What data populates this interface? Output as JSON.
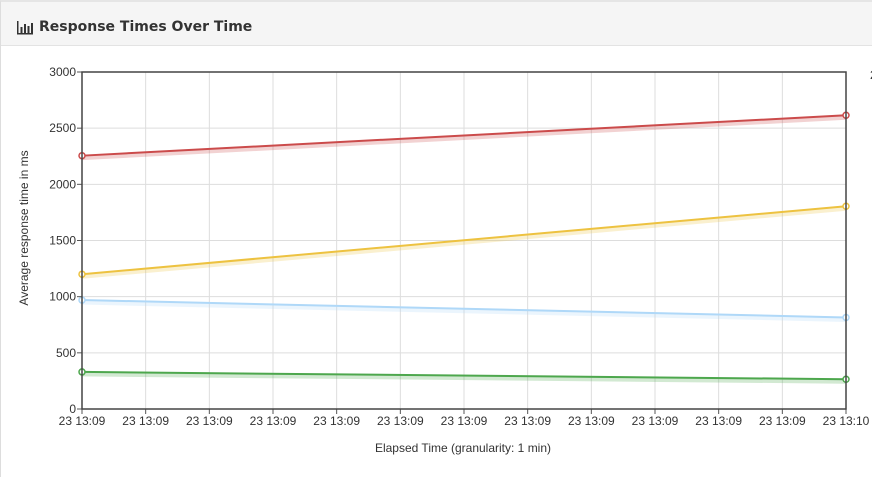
{
  "panel": {
    "title": "Response Times Over Time"
  },
  "chart_data": {
    "type": "line",
    "title": "Response Times Over Time",
    "xlabel": "Elapsed Time (granularity: 1 min)",
    "ylabel": "Average response time in ms",
    "ylim": [
      0,
      3000
    ],
    "yticks": [
      0,
      500,
      1000,
      1500,
      2000,
      2500,
      3000
    ],
    "x_tick_labels": [
      "23 13:09",
      "23 13:09",
      "23 13:09",
      "23 13:09",
      "23 13:09",
      "23 13:09",
      "23 13:09",
      "23 13:09",
      "23 13:09",
      "23 13:09",
      "23 13:09",
      "23 13:09",
      "23 13:10"
    ],
    "x": [
      "23 13:09",
      "23 13:10"
    ],
    "grid": true,
    "series": [
      {
        "color": "#cb4b4b",
        "values": [
          2255,
          2615
        ]
      },
      {
        "color": "#edc240",
        "values": [
          1200,
          1805
        ]
      },
      {
        "color": "#afd8f8",
        "values": [
          970,
          815
        ]
      },
      {
        "color": "#4da74d",
        "values": [
          330,
          265
        ]
      }
    ]
  }
}
